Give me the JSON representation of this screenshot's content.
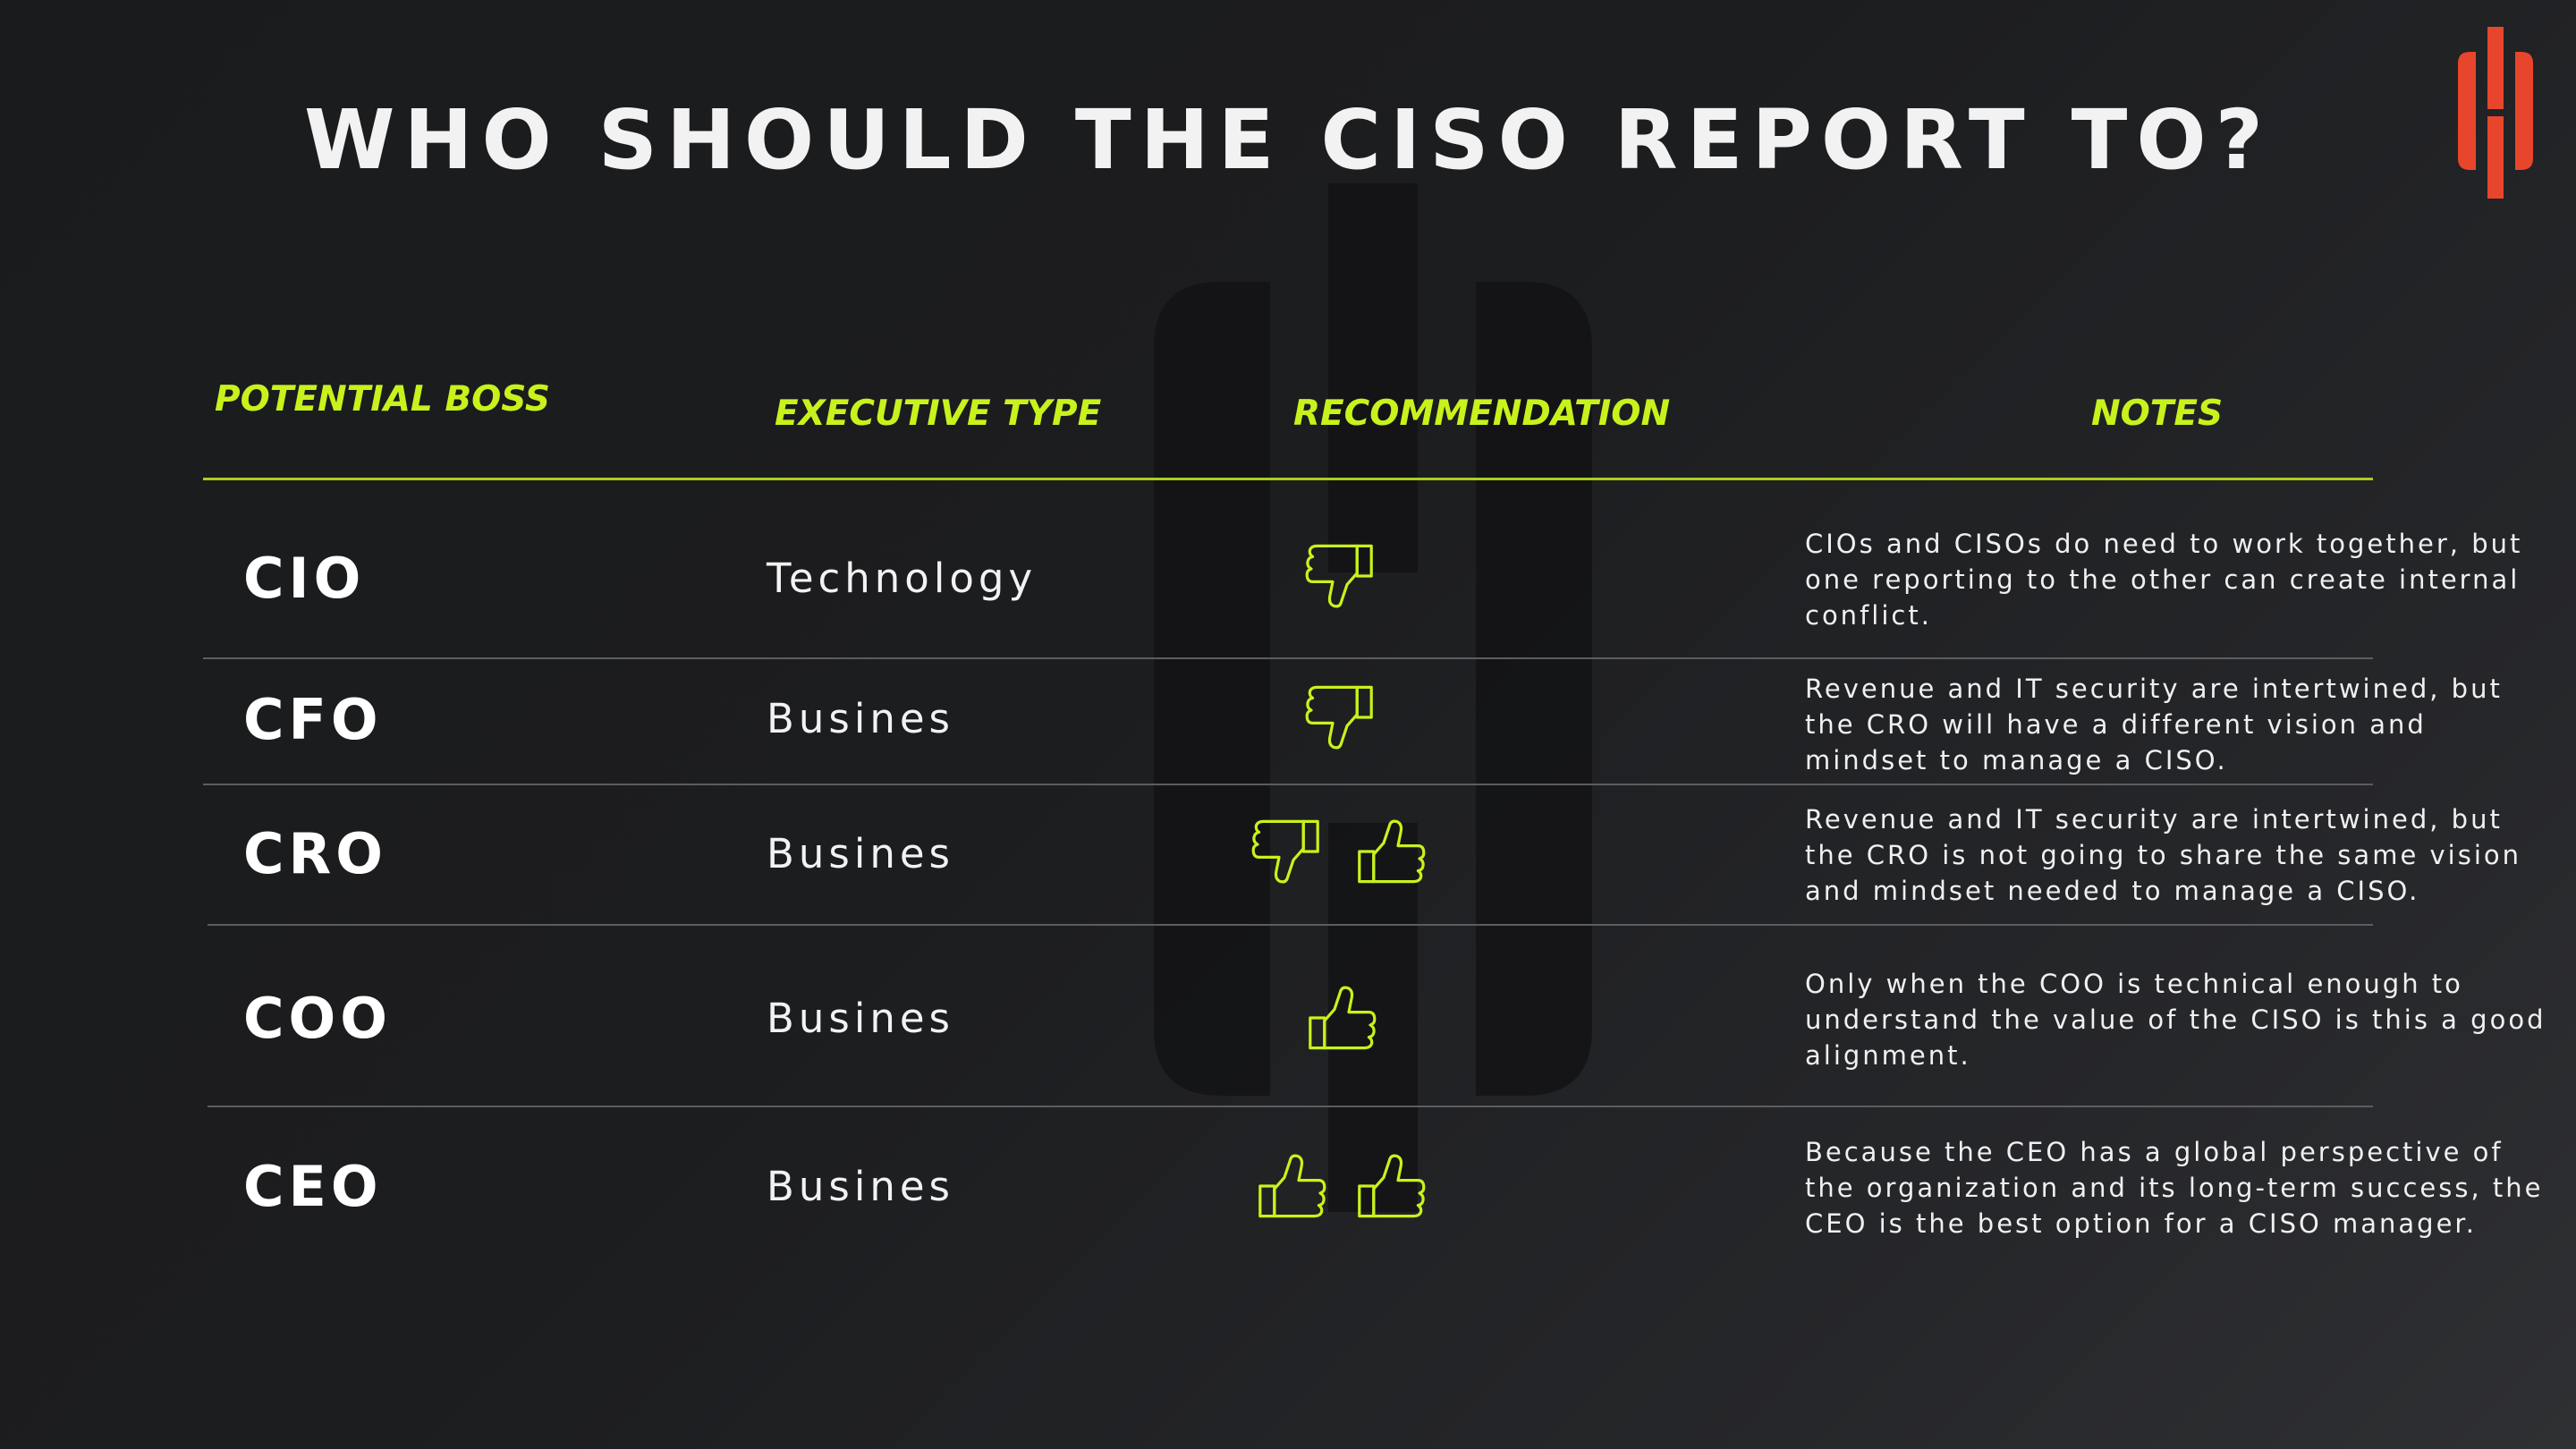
{
  "title": "WHO SHOULD THE CISO REPORT TO?",
  "colors": {
    "accent": "#c8f21c",
    "logo": "#e8462c",
    "background": "#1c1d1f"
  },
  "headers": {
    "boss": "POTENTIAL BOSS",
    "type": "EXECUTIVE TYPE",
    "recommendation": "RECOMMENDATION",
    "notes": "NOTES"
  },
  "rows": [
    {
      "boss": "CIO",
      "type": "Technology",
      "recommendation": [
        "thumbs-down-icon"
      ],
      "note": "CIOs and CISOs do need to work together, but one reporting to the other can create internal conflict."
    },
    {
      "boss": "CFO",
      "type": "Busines",
      "recommendation": [
        "thumbs-down-icon"
      ],
      "note": "Revenue and IT security are intertwined, but the CRO will have a different vision and mindset to manage a CISO."
    },
    {
      "boss": "CRO",
      "type": "Busines",
      "recommendation": [
        "thumbs-down-icon",
        "thumbs-up-icon"
      ],
      "note": "Revenue and IT security are intertwined, but the CRO is not going to share the same vision and mindset needed to manage a CISO."
    },
    {
      "boss": "COO",
      "type": "Busines",
      "recommendation": [
        "thumbs-up-icon"
      ],
      "note": "Only when the COO is technical enough to understand the value of the CISO is this a good alignment."
    },
    {
      "boss": "CEO",
      "type": "Busines",
      "recommendation": [
        "thumbs-up-icon",
        "thumbs-up-icon"
      ],
      "note": "Because the CEO has a global perspective of the organization and its long-term success, the CEO is the best option for a CISO manager."
    }
  ]
}
